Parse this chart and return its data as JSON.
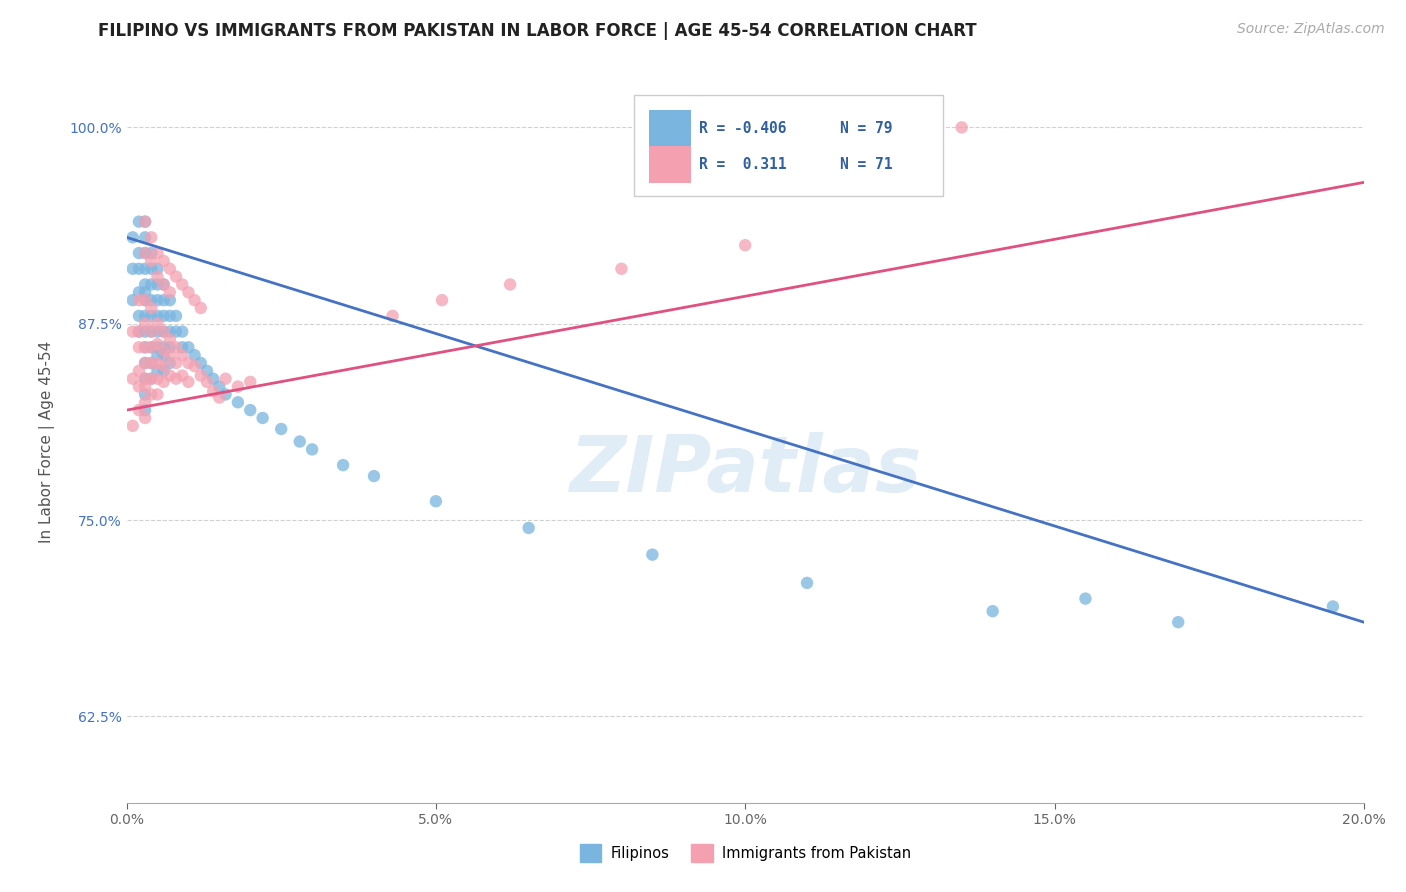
{
  "title": "FILIPINO VS IMMIGRANTS FROM PAKISTAN IN LABOR FORCE | AGE 45-54 CORRELATION CHART",
  "source": "Source: ZipAtlas.com",
  "ylabel": "In Labor Force | Age 45-54",
  "xlim": [
    0.0,
    0.2
  ],
  "ylim": [
    0.57,
    1.03
  ],
  "xticks": [
    0.0,
    0.05,
    0.1,
    0.15,
    0.2
  ],
  "xtick_labels": [
    "0.0%",
    "5.0%",
    "10.0%",
    "15.0%",
    "20.0%"
  ],
  "yticks": [
    0.625,
    0.75,
    0.875,
    1.0
  ],
  "ytick_labels": [
    "62.5%",
    "75.0%",
    "87.5%",
    "100.0%"
  ],
  "legend_labels": [
    "Filipinos",
    "Immigrants from Pakistan"
  ],
  "blue_color": "#7ab5e0",
  "pink_color": "#f4a0b0",
  "blue_line_color": "#4472c4",
  "pink_line_color": "#e05080",
  "background_color": "#ffffff",
  "grid_color": "#cccccc",
  "filipinos_x": [
    0.001,
    0.001,
    0.001,
    0.002,
    0.002,
    0.002,
    0.002,
    0.002,
    0.002,
    0.003,
    0.003,
    0.003,
    0.003,
    0.003,
    0.003,
    0.003,
    0.003,
    0.003,
    0.003,
    0.003,
    0.003,
    0.003,
    0.003,
    0.004,
    0.004,
    0.004,
    0.004,
    0.004,
    0.004,
    0.004,
    0.004,
    0.004,
    0.005,
    0.005,
    0.005,
    0.005,
    0.005,
    0.005,
    0.005,
    0.005,
    0.006,
    0.006,
    0.006,
    0.006,
    0.006,
    0.006,
    0.006,
    0.007,
    0.007,
    0.007,
    0.007,
    0.007,
    0.008,
    0.008,
    0.009,
    0.009,
    0.01,
    0.011,
    0.012,
    0.013,
    0.014,
    0.015,
    0.016,
    0.018,
    0.02,
    0.022,
    0.025,
    0.028,
    0.03,
    0.035,
    0.04,
    0.05,
    0.065,
    0.085,
    0.11,
    0.14,
    0.155,
    0.17,
    0.195
  ],
  "filipinos_y": [
    0.93,
    0.91,
    0.89,
    0.94,
    0.92,
    0.91,
    0.895,
    0.88,
    0.87,
    0.94,
    0.93,
    0.92,
    0.91,
    0.9,
    0.895,
    0.89,
    0.88,
    0.87,
    0.86,
    0.85,
    0.84,
    0.83,
    0.82,
    0.92,
    0.91,
    0.9,
    0.89,
    0.88,
    0.87,
    0.86,
    0.85,
    0.84,
    0.91,
    0.9,
    0.89,
    0.88,
    0.87,
    0.86,
    0.855,
    0.845,
    0.9,
    0.89,
    0.88,
    0.87,
    0.86,
    0.855,
    0.845,
    0.89,
    0.88,
    0.87,
    0.86,
    0.85,
    0.88,
    0.87,
    0.87,
    0.86,
    0.86,
    0.855,
    0.85,
    0.845,
    0.84,
    0.835,
    0.83,
    0.825,
    0.82,
    0.815,
    0.808,
    0.8,
    0.795,
    0.785,
    0.778,
    0.762,
    0.745,
    0.728,
    0.71,
    0.692,
    0.7,
    0.685,
    0.695
  ],
  "pakistan_x": [
    0.001,
    0.001,
    0.001,
    0.002,
    0.002,
    0.002,
    0.002,
    0.002,
    0.002,
    0.003,
    0.003,
    0.003,
    0.003,
    0.003,
    0.003,
    0.003,
    0.003,
    0.004,
    0.004,
    0.004,
    0.004,
    0.004,
    0.004,
    0.005,
    0.005,
    0.005,
    0.005,
    0.005,
    0.006,
    0.006,
    0.006,
    0.006,
    0.007,
    0.007,
    0.007,
    0.008,
    0.008,
    0.008,
    0.009,
    0.009,
    0.01,
    0.01,
    0.011,
    0.012,
    0.013,
    0.014,
    0.015,
    0.016,
    0.018,
    0.02,
    0.003,
    0.003,
    0.004,
    0.004,
    0.005,
    0.005,
    0.006,
    0.006,
    0.007,
    0.007,
    0.008,
    0.009,
    0.01,
    0.011,
    0.012,
    0.043,
    0.051,
    0.062,
    0.08,
    0.1,
    0.135
  ],
  "pakistan_y": [
    0.87,
    0.84,
    0.81,
    0.89,
    0.87,
    0.86,
    0.845,
    0.835,
    0.82,
    0.89,
    0.875,
    0.86,
    0.85,
    0.84,
    0.835,
    0.825,
    0.815,
    0.885,
    0.87,
    0.86,
    0.85,
    0.84,
    0.83,
    0.875,
    0.862,
    0.85,
    0.84,
    0.83,
    0.87,
    0.858,
    0.848,
    0.838,
    0.865,
    0.855,
    0.842,
    0.86,
    0.85,
    0.84,
    0.855,
    0.842,
    0.85,
    0.838,
    0.848,
    0.842,
    0.838,
    0.832,
    0.828,
    0.84,
    0.835,
    0.838,
    0.94,
    0.92,
    0.93,
    0.915,
    0.92,
    0.905,
    0.915,
    0.9,
    0.91,
    0.895,
    0.905,
    0.9,
    0.895,
    0.89,
    0.885,
    0.88,
    0.89,
    0.9,
    0.91,
    0.925,
    1.0
  ],
  "blue_trendline_x": [
    0.0,
    0.2
  ],
  "blue_trendline_y": [
    0.93,
    0.685
  ],
  "pink_trendline_x": [
    0.0,
    0.2
  ],
  "pink_trendline_y": [
    0.82,
    0.965
  ],
  "watermark": "ZIPatlas",
  "title_fontsize": 12,
  "axis_fontsize": 11,
  "tick_fontsize": 10,
  "source_fontsize": 10
}
